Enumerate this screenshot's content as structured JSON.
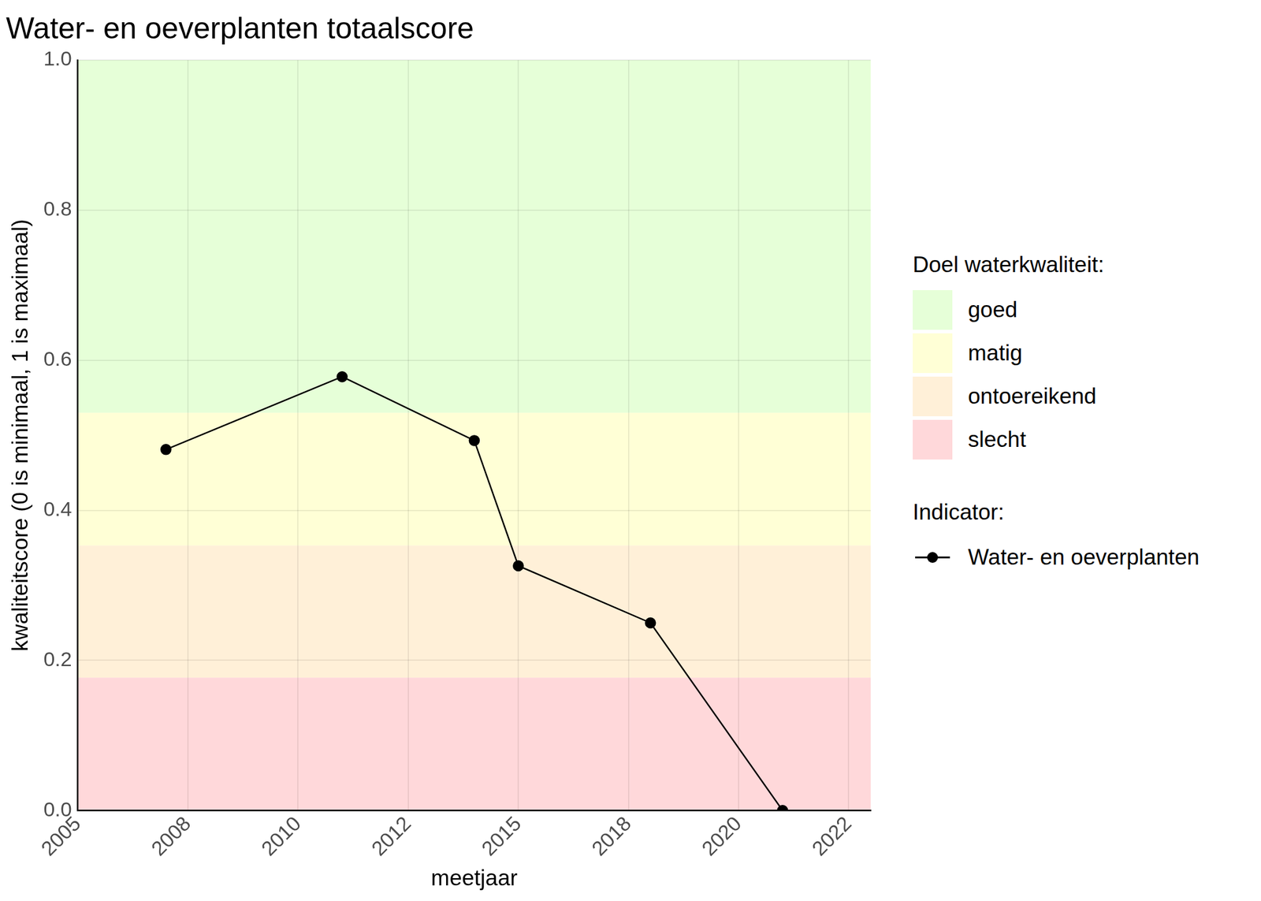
{
  "chart_data": {
    "type": "line",
    "title": "Water- en oeverplanten totaalscore",
    "x_label": "meetjaar",
    "y_label": "kwaliteitscore (0 is minimaal, 1 is maximaal)",
    "x": [
      2007,
      2011,
      2014,
      2015,
      2018,
      2021
    ],
    "series": [
      {
        "name": "Water- en oeverplanten",
        "color": "#000000",
        "marker": "circle",
        "line_style": "solid",
        "values": [
          0.481,
          0.578,
          0.493,
          0.326,
          0.25,
          0
        ]
      }
    ],
    "xlim": [
      2005,
      2023
    ],
    "xticks": [
      {
        "value": 2005,
        "label": "2005"
      },
      {
        "value": 2007.5,
        "label": "2008"
      },
      {
        "value": 2010,
        "label": "2010"
      },
      {
        "value": 2012.5,
        "label": "2012"
      },
      {
        "value": 2015,
        "label": "2015"
      },
      {
        "value": 2017.5,
        "label": "2018"
      },
      {
        "value": 2020,
        "label": "2020"
      },
      {
        "value": 2022.5,
        "label": "2022"
      }
    ],
    "ylim": [
      0,
      1
    ],
    "yticks": [
      {
        "value": 0,
        "label": "0.0"
      },
      0.2,
      0.4,
      0.6,
      0.8,
      {
        "value": 1,
        "label": "1.0"
      }
    ],
    "grid": true,
    "legend": "right",
    "legend_title": "Indicator:",
    "bands_title": "Doel waterkwaliteit:",
    "bands": [
      {
        "name": "goed",
        "color": "#e6ffd8",
        "from": 0.53,
        "to": 1
      },
      {
        "name": "matig",
        "color": "#ffffd6",
        "from": 0.353,
        "to": 0.53
      },
      {
        "name": "ontoereikend",
        "color": "#fff0d8",
        "from": 0.177,
        "to": 0.353
      },
      {
        "name": "slecht",
        "color": "#ffd8da",
        "from": 0,
        "to": 0.177
      }
    ]
  }
}
